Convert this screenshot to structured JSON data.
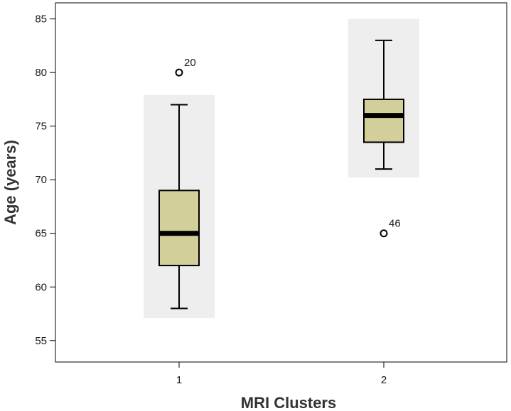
{
  "chart_data": {
    "type": "box",
    "title": "",
    "xlabel": "MRI Clusters",
    "ylabel": "Age (years)",
    "ylim": [
      53,
      86.5
    ],
    "yticks": [
      55,
      60,
      65,
      70,
      75,
      80,
      85
    ],
    "categories": [
      "1",
      "2"
    ],
    "grid": false,
    "legend": "none",
    "boxes": [
      {
        "category": "1",
        "whisker_low": 58,
        "q1": 62,
        "median": 65,
        "q3": 69,
        "whisker_high": 77,
        "outliers": [
          {
            "value": 80,
            "label": "20"
          }
        ],
        "range_band": [
          57.1,
          77.9
        ]
      },
      {
        "category": "2",
        "whisker_low": 71,
        "q1": 73.5,
        "median": 76,
        "q3": 77.5,
        "whisker_high": 83,
        "outliers": [
          {
            "value": 65,
            "label": "46"
          }
        ],
        "range_band": [
          70.2,
          85
        ]
      }
    ],
    "colors": {
      "box_fill": "#d3cf9b",
      "band_fill": "#eeeeee",
      "line": "#000000"
    }
  }
}
